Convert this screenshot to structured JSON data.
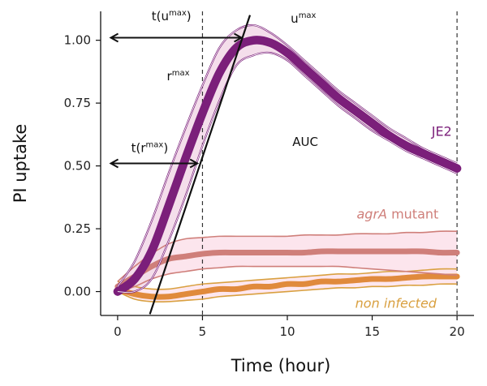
{
  "chart_data": {
    "type": "line",
    "xlabel": "Time (hour)",
    "ylabel": "PI uptake",
    "xlim": [
      -1.0,
      21.0
    ],
    "ylim": [
      -0.095,
      1.115
    ],
    "x_ticks": [
      0,
      5,
      10,
      15,
      20
    ],
    "y_ticks": [
      "0.00",
      "0.25",
      "0.50",
      "0.75",
      "1.00"
    ],
    "colors": {
      "je2": "#7b1f7a",
      "je2_band": "#f3dcea",
      "agr": "#cf7f7a",
      "agr_band": "#fce4ec",
      "non": "#e08a3c",
      "non_band": "#fde6ee",
      "tangent": "#111111",
      "guides": "#333333"
    },
    "series": [
      {
        "name": "JE2",
        "x": [
          0,
          1,
          2,
          3,
          4,
          5,
          6,
          7,
          8,
          9,
          10,
          11,
          12,
          13,
          14,
          15,
          16,
          17,
          18,
          19,
          20
        ],
        "mean": [
          0.0,
          0.05,
          0.16,
          0.34,
          0.53,
          0.71,
          0.87,
          0.97,
          1.0,
          0.99,
          0.95,
          0.89,
          0.83,
          0.77,
          0.72,
          0.67,
          0.62,
          0.58,
          0.55,
          0.52,
          0.49
        ],
        "upper": [
          0.02,
          0.12,
          0.28,
          0.47,
          0.65,
          0.82,
          0.97,
          1.04,
          1.06,
          1.03,
          0.98,
          0.92,
          0.86,
          0.8,
          0.75,
          0.7,
          0.65,
          0.61,
          0.57,
          0.54,
          0.51
        ],
        "lower": [
          0.0,
          0.0,
          0.05,
          0.2,
          0.38,
          0.58,
          0.76,
          0.9,
          0.94,
          0.95,
          0.92,
          0.86,
          0.8,
          0.74,
          0.69,
          0.64,
          0.6,
          0.56,
          0.53,
          0.5,
          0.47
        ]
      },
      {
        "name": "agrA mutant",
        "x": [
          0,
          1,
          2,
          3,
          4,
          5,
          6,
          7,
          8,
          9,
          10,
          11,
          12,
          13,
          14,
          15,
          16,
          17,
          18,
          19,
          20
        ],
        "mean": [
          0.02,
          0.06,
          0.1,
          0.13,
          0.14,
          0.15,
          0.155,
          0.155,
          0.155,
          0.155,
          0.155,
          0.155,
          0.16,
          0.16,
          0.16,
          0.16,
          0.16,
          0.16,
          0.16,
          0.155,
          0.155
        ],
        "upper": [
          0.04,
          0.1,
          0.15,
          0.19,
          0.21,
          0.215,
          0.22,
          0.22,
          0.22,
          0.22,
          0.22,
          0.225,
          0.225,
          0.225,
          0.23,
          0.23,
          0.23,
          0.235,
          0.235,
          0.24,
          0.24
        ],
        "lower": [
          0.0,
          0.02,
          0.05,
          0.07,
          0.08,
          0.09,
          0.095,
          0.1,
          0.1,
          0.1,
          0.1,
          0.1,
          0.1,
          0.1,
          0.095,
          0.09,
          0.085,
          0.08,
          0.075,
          0.07,
          0.065
        ]
      },
      {
        "name": "non infected",
        "x": [
          0,
          1,
          2,
          3,
          4,
          5,
          6,
          7,
          8,
          9,
          10,
          11,
          12,
          13,
          14,
          15,
          16,
          17,
          18,
          19,
          20
        ],
        "mean": [
          0.01,
          -0.01,
          -0.02,
          -0.02,
          -0.01,
          0.0,
          0.01,
          0.01,
          0.02,
          0.02,
          0.03,
          0.03,
          0.04,
          0.04,
          0.045,
          0.05,
          0.05,
          0.055,
          0.06,
          0.06,
          0.06
        ],
        "upper": [
          0.04,
          0.02,
          0.01,
          0.01,
          0.02,
          0.03,
          0.035,
          0.04,
          0.045,
          0.05,
          0.055,
          0.06,
          0.065,
          0.07,
          0.07,
          0.075,
          0.08,
          0.08,
          0.085,
          0.09,
          0.09
        ],
        "lower": [
          0.0,
          -0.03,
          -0.04,
          -0.04,
          -0.035,
          -0.03,
          -0.02,
          -0.015,
          -0.01,
          -0.005,
          0.0,
          0.005,
          0.01,
          0.015,
          0.015,
          0.02,
          0.02,
          0.025,
          0.025,
          0.03,
          0.03
        ]
      }
    ],
    "tangent_line": {
      "x": [
        1.9,
        7.8
      ],
      "y": [
        -0.09,
        1.1
      ]
    },
    "vertical_guides": [
      5,
      20
    ],
    "annotations": {
      "u_max": {
        "text": "u",
        "sup": "max",
        "x": 10.2,
        "y": 1.07
      },
      "r_max": {
        "text": "r",
        "sup": "max",
        "x": 2.9,
        "y": 0.84
      },
      "t_u_max": {
        "text": "t(u",
        "sup": "max",
        "close": ")",
        "x": 2.0,
        "y": 1.08,
        "arrow_from": -0.4,
        "arrow_to": 7.3,
        "arrow_y": 1.01
      },
      "t_r_max": {
        "text": "t(r",
        "sup": "max",
        "close": ")",
        "x": 0.8,
        "y": 0.555,
        "arrow_from": -0.4,
        "arrow_to": 4.7,
        "arrow_y": 0.51
      },
      "auc": {
        "text": "AUC",
        "x": 10.3,
        "y": 0.58
      }
    },
    "series_labels": [
      {
        "text": "JE2",
        "italic": false,
        "x": 18.5,
        "y": 0.62
      },
      {
        "text_italic": "agrA",
        "text_rest": " mutant",
        "x": 16.5,
        "y": 0.29
      },
      {
        "text": "non infected",
        "italic": true,
        "x": 16.4,
        "y": -0.065
      }
    ]
  }
}
